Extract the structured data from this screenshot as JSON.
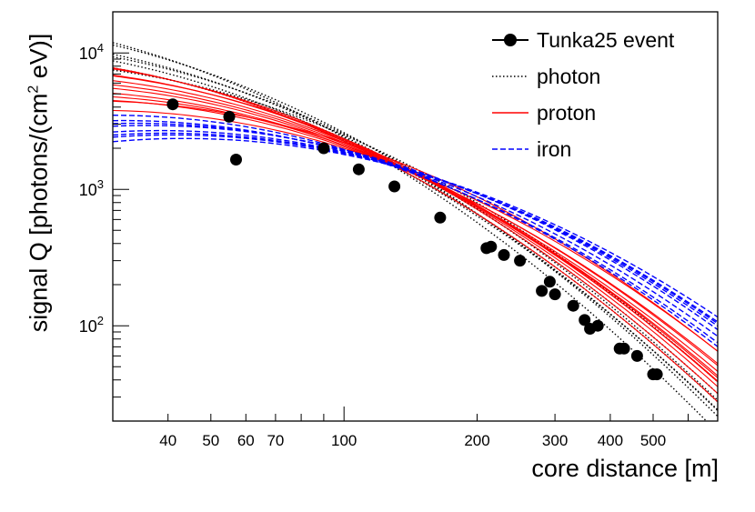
{
  "chart_data": {
    "type": "line",
    "title": "",
    "xlabel": "core distance [m]",
    "ylabel_parts": [
      "signal Q [photons/(cm",
      "2",
      " eV)]"
    ],
    "xscale": "log",
    "yscale": "log",
    "xlim": [
      30,
      700
    ],
    "ylim": [
      20,
      20000
    ],
    "x_ticks": [
      {
        "value": 40,
        "label": "40"
      },
      {
        "value": 50,
        "label": "50"
      },
      {
        "value": 60,
        "label": "60"
      },
      {
        "value": 70,
        "label": "70"
      },
      {
        "value": 100,
        "label": "100"
      },
      {
        "value": 200,
        "label": "200"
      },
      {
        "value": 300,
        "label": "300"
      },
      {
        "value": 400,
        "label": "400"
      },
      {
        "value": 500,
        "label": "500"
      }
    ],
    "y_ticks": [
      {
        "value": 100,
        "base": "10",
        "exp": "2"
      },
      {
        "value": 1000,
        "base": "10",
        "exp": "3"
      },
      {
        "value": 10000,
        "base": "10",
        "exp": "4"
      }
    ],
    "legend_position": "top-right",
    "event": {
      "name": "Tunka25 event",
      "x": [
        41,
        55,
        57,
        90,
        108,
        130,
        165,
        210,
        215,
        230,
        250,
        280,
        292,
        300,
        330,
        350,
        360,
        375,
        420,
        430,
        460,
        500,
        510
      ],
      "y": [
        4200,
        3400,
        1650,
        2000,
        1400,
        1050,
        620,
        370,
        380,
        330,
        300,
        180,
        210,
        170,
        140,
        110,
        95,
        100,
        68,
        68,
        60,
        44,
        44
      ]
    },
    "simulations": [
      {
        "name": "photon",
        "style": "dotted",
        "color": "#000000",
        "curves": [
          {
            "q100": 2550,
            "s": 1.55
          },
          {
            "q100": 2450,
            "s": 1.62
          },
          {
            "q100": 2350,
            "s": 1.45
          },
          {
            "q100": 2600,
            "s": 1.7
          },
          {
            "q100": 2250,
            "s": 1.5
          },
          {
            "q100": 2500,
            "s": 1.38
          },
          {
            "q100": 2400,
            "s": 1.8
          },
          {
            "q100": 2300,
            "s": 1.58
          }
        ]
      },
      {
        "name": "proton",
        "style": "solid",
        "color": "#ff0000",
        "curves": [
          {
            "q100": 2250,
            "s": 1.32
          },
          {
            "q100": 2150,
            "s": 1.25
          },
          {
            "q100": 2350,
            "s": 1.45
          },
          {
            "q100": 2050,
            "s": 1.12
          },
          {
            "q100": 2200,
            "s": 1.05
          },
          {
            "q100": 2100,
            "s": 1.2
          },
          {
            "q100": 2300,
            "s": 1.38
          },
          {
            "q100": 2000,
            "s": 1.0
          },
          {
            "q100": 2250,
            "s": 1.5
          },
          {
            "q100": 2100,
            "s": 1.15
          },
          {
            "q100": 2200,
            "s": 1.28
          },
          {
            "q100": 2350,
            "s": 1.35
          }
        ]
      },
      {
        "name": "iron",
        "style": "dashed",
        "color": "#0000ff",
        "curves": [
          {
            "q100": 1950,
            "s": 0.8
          },
          {
            "q100": 1850,
            "s": 0.72
          },
          {
            "q100": 1900,
            "s": 0.9
          },
          {
            "q100": 1800,
            "s": 0.65
          },
          {
            "q100": 1920,
            "s": 0.85
          },
          {
            "q100": 1880,
            "s": 0.75
          },
          {
            "q100": 1830,
            "s": 0.7
          },
          {
            "q100": 1960,
            "s": 0.95
          }
        ]
      }
    ]
  }
}
